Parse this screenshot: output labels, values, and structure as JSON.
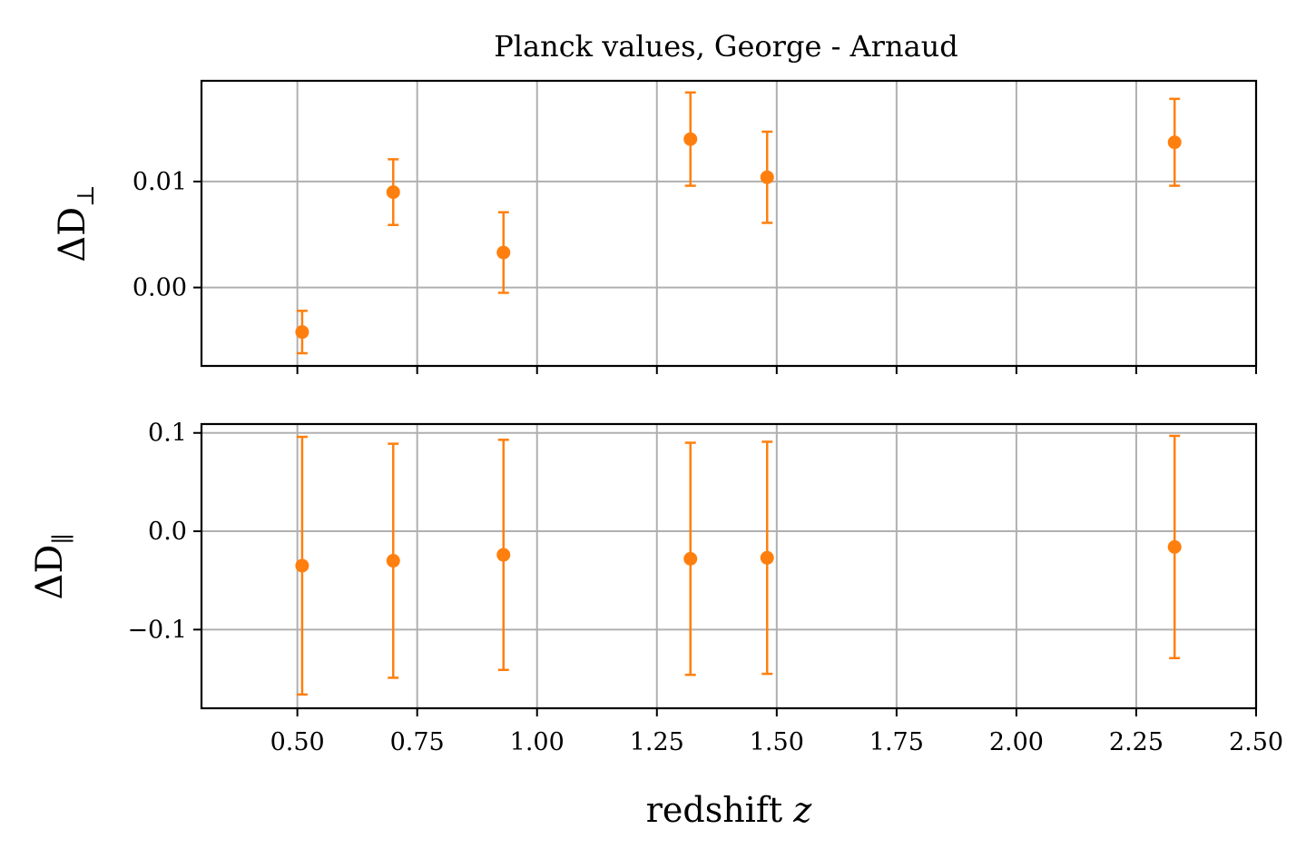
{
  "chart_data": [
    {
      "type": "scatter",
      "panel": "top",
      "title": "Planck values, George - Arnaud",
      "ylabel": {
        "main": "ΔD",
        "sub": "⊥"
      },
      "xlabel": "",
      "xlim": [
        0.3,
        2.5
      ],
      "ylim": [
        -0.0074,
        0.0195
      ],
      "yticks": [
        0.0,
        0.01
      ],
      "ytick_labels": [
        "0.00",
        "0.01"
      ],
      "xticks": [
        0.5,
        0.75,
        1.0,
        1.25,
        1.5,
        1.75,
        2.0,
        2.25,
        2.5
      ],
      "xtick_labels": [],
      "grid": true,
      "color": "#ff7f0e",
      "series": [
        {
          "name": "ΔD⊥",
          "x": [
            0.51,
            0.7,
            0.93,
            1.32,
            1.48,
            2.33
          ],
          "y": [
            -0.0042,
            0.009,
            0.0033,
            0.014,
            0.0104,
            0.0137
          ],
          "yerr_low": [
            0.002,
            0.0031,
            0.0038,
            0.0044,
            0.0043,
            0.0041
          ],
          "yerr_high": [
            0.002,
            0.0031,
            0.0038,
            0.0044,
            0.0043,
            0.0041
          ]
        }
      ]
    },
    {
      "type": "scatter",
      "panel": "bottom",
      "title": "",
      "ylabel": {
        "main": "ΔD",
        "sub": "∥"
      },
      "xlabel": "redshift z",
      "xlim": [
        0.3,
        2.5
      ],
      "ylim": [
        -0.18,
        0.109
      ],
      "yticks": [
        -0.1,
        0.0,
        0.1
      ],
      "ytick_labels": [
        "−0.1",
        "0.0",
        "0.1"
      ],
      "xticks": [
        0.5,
        0.75,
        1.0,
        1.25,
        1.5,
        1.75,
        2.0,
        2.25,
        2.5
      ],
      "xtick_labels": [
        "0.50",
        "0.75",
        "1.00",
        "1.25",
        "1.50",
        "1.75",
        "2.00",
        "2.25",
        "2.50"
      ],
      "grid": true,
      "color": "#ff7f0e",
      "series": [
        {
          "name": "ΔD∥",
          "x": [
            0.51,
            0.7,
            0.93,
            1.32,
            1.48,
            2.33
          ],
          "y": [
            -0.035,
            -0.03,
            -0.024,
            -0.028,
            -0.027,
            -0.016
          ],
          "yerr_low": [
            0.131,
            0.119,
            0.117,
            0.118,
            0.118,
            0.113
          ],
          "yerr_high": [
            0.131,
            0.119,
            0.117,
            0.118,
            0.118,
            0.113
          ]
        }
      ]
    }
  ]
}
